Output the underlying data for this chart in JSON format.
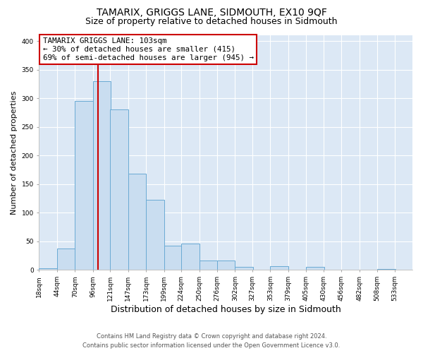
{
  "title": "TAMARIX, GRIGGS LANE, SIDMOUTH, EX10 9QF",
  "subtitle": "Size of property relative to detached houses in Sidmouth",
  "xlabel": "Distribution of detached houses by size in Sidmouth",
  "ylabel": "Number of detached properties",
  "footer_line1": "Contains HM Land Registry data © Crown copyright and database right 2024.",
  "footer_line2": "Contains public sector information licensed under the Open Government Licence v3.0.",
  "bin_labels": [
    "18sqm",
    "44sqm",
    "70sqm",
    "96sqm",
    "121sqm",
    "147sqm",
    "173sqm",
    "199sqm",
    "224sqm",
    "250sqm",
    "276sqm",
    "302sqm",
    "327sqm",
    "353sqm",
    "379sqm",
    "405sqm",
    "430sqm",
    "456sqm",
    "482sqm",
    "508sqm",
    "533sqm"
  ],
  "bar_heights": [
    3,
    37,
    295,
    330,
    280,
    168,
    123,
    42,
    46,
    17,
    17,
    5,
    0,
    7,
    0,
    5,
    0,
    0,
    0,
    2,
    0
  ],
  "bar_color": "#c9ddf0",
  "bar_edge_color": "#6aaad4",
  "property_line_x": 103,
  "bin_edges": [
    18,
    44,
    70,
    96,
    121,
    147,
    173,
    199,
    224,
    250,
    276,
    302,
    327,
    353,
    379,
    405,
    430,
    456,
    482,
    508,
    533
  ],
  "bin_width": 26,
  "annotation_title": "TAMARIX GRIGGS LANE: 103sqm",
  "annotation_line1": "← 30% of detached houses are smaller (415)",
  "annotation_line2": "69% of semi-detached houses are larger (945) →",
  "annotation_box_facecolor": "#ffffff",
  "annotation_box_edgecolor": "#cc0000",
  "red_line_color": "#cc0000",
  "ylim": [
    0,
    410
  ],
  "yticks": [
    0,
    50,
    100,
    150,
    200,
    250,
    300,
    350,
    400
  ],
  "fig_background": "#ffffff",
  "plot_background": "#dce8f5",
  "grid_color": "#ffffff",
  "title_fontsize": 10,
  "subtitle_fontsize": 9,
  "xlabel_fontsize": 9,
  "ylabel_fontsize": 8,
  "tick_fontsize": 6.5,
  "footer_fontsize": 6,
  "annotation_fontsize": 7.8
}
